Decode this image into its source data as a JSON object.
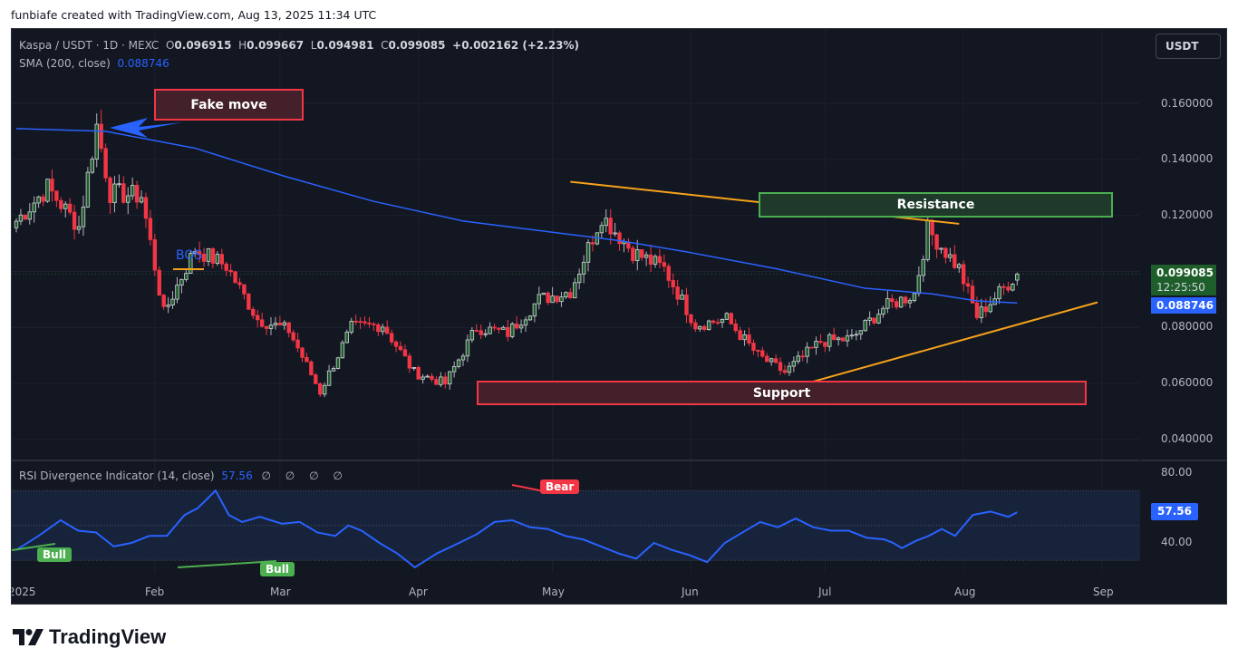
{
  "credit": "funbiafe created with TradingView.com, Aug 13, 2025 11:34 UTC",
  "legend": {
    "symbol": "Kaspa / USDT · 1D · MEXC",
    "open_label": "O",
    "open": "0.096915",
    "high_label": "H",
    "high": "0.099667",
    "low_label": "L",
    "low": "0.094981",
    "close_label": "C",
    "close": "0.099085",
    "change": "+0.002162 (+2.23%)",
    "sma_label": "SMA (200, close)",
    "sma_value": "0.088746"
  },
  "currency_button": "USDT",
  "price_axis": [
    "0.160000",
    "0.140000",
    "0.120000",
    "0.080000",
    "0.060000",
    "0.040000"
  ],
  "price_tags": {
    "last": "0.099085",
    "countdown": "12:25:50",
    "sma": "0.088746"
  },
  "rsi": {
    "label": "RSI Divergence Indicator (14, close)",
    "value": "57.56",
    "nulls": "∅ ∅ ∅ ∅",
    "axis": [
      "80.00",
      "40.00"
    ],
    "tag": "57.56"
  },
  "time_axis": [
    "2025",
    "Feb",
    "Mar",
    "Apr",
    "May",
    "Jun",
    "Jul",
    "Aug",
    "Sep"
  ],
  "annotations": {
    "fake_move": "Fake move",
    "resistance": "Resistance",
    "support": "Support",
    "bos": "BOS",
    "bull_1": "Bull",
    "bull_2": "Bull",
    "bear": "Bear"
  },
  "colors": {
    "background": "#131722",
    "up": "#1e5e2a",
    "up_border": "#d1d4dc",
    "down": "#f23645",
    "sma": "#2962ff",
    "rsi": "#2962ff",
    "trendline": "#f7a21b",
    "bull": "#4caf50",
    "bear": "#f23645"
  },
  "footer": {
    "brand": "TradingView"
  },
  "chart_data": {
    "type": "candlestick",
    "title": "Kaspa / USDT · 1D · MEXC",
    "xlabel": "",
    "ylabel": "USDT",
    "ylim": [
      0.035,
      0.175
    ],
    "x_ticks": [
      "2025",
      "Feb",
      "Mar",
      "Apr",
      "May",
      "Jun",
      "Jul",
      "Aug",
      "Sep"
    ],
    "y_ticks": [
      0.04,
      0.06,
      0.08,
      0.1,
      0.12,
      0.14,
      0.16
    ],
    "close_series_weekly_approx": {
      "dates": [
        "Jan 01",
        "Jan 08",
        "Jan 15",
        "Jan 19",
        "Jan 22",
        "Jan 29",
        "Feb 03",
        "Feb 10",
        "Feb 17",
        "Feb 24",
        "Mar 03",
        "Mar 10",
        "Mar 17",
        "Mar 24",
        "Mar 31",
        "Apr 07",
        "Apr 14",
        "Apr 21",
        "Apr 28",
        "May 05",
        "May 12",
        "May 19",
        "May 26",
        "Jun 02",
        "Jun 09",
        "Jun 16",
        "Jun 22",
        "Jun 30",
        "Jul 07",
        "Jul 14",
        "Jul 21",
        "Jul 24",
        "Jul 31",
        "Aug 04",
        "Aug 13"
      ],
      "close": [
        0.118,
        0.13,
        0.116,
        0.152,
        0.128,
        0.127,
        0.085,
        0.108,
        0.102,
        0.083,
        0.079,
        0.057,
        0.08,
        0.081,
        0.064,
        0.06,
        0.08,
        0.078,
        0.09,
        0.093,
        0.12,
        0.107,
        0.101,
        0.081,
        0.083,
        0.07,
        0.064,
        0.075,
        0.076,
        0.087,
        0.092,
        0.115,
        0.101,
        0.084,
        0.099085
      ]
    },
    "sma200": {
      "start": 0.152,
      "end": 0.088746
    },
    "last": {
      "open": 0.096915,
      "high": 0.099667,
      "low": 0.094981,
      "close": 0.099085,
      "change": 0.002162,
      "change_pct": 2.23
    },
    "zones": [
      {
        "label": "Resistance",
        "low": 0.116,
        "high": 0.125,
        "from": "Jun 15",
        "to": "Aug 31"
      },
      {
        "label": "Support",
        "low": 0.053,
        "high": 0.061,
        "from": "Apr 14",
        "to": "Aug 31"
      }
    ],
    "trendlines": [
      {
        "name": "descending resistance",
        "from": [
          "May 05",
          0.132
        ],
        "to": [
          "Jul 31",
          0.117
        ]
      },
      {
        "name": "ascending support",
        "from": [
          "Jun 20",
          0.057
        ],
        "to": [
          "Aug 31",
          0.089
        ]
      }
    ],
    "rsi_panel": {
      "period": 14,
      "last": 57.56,
      "ylim": [
        25,
        85
      ],
      "bands": [
        30,
        50,
        70
      ],
      "divergences": [
        {
          "type": "Bull",
          "at": "Jan 10"
        },
        {
          "type": "Bull",
          "at": "Feb 25"
        },
        {
          "type": "Bear",
          "at": "Apr 25"
        }
      ]
    }
  }
}
